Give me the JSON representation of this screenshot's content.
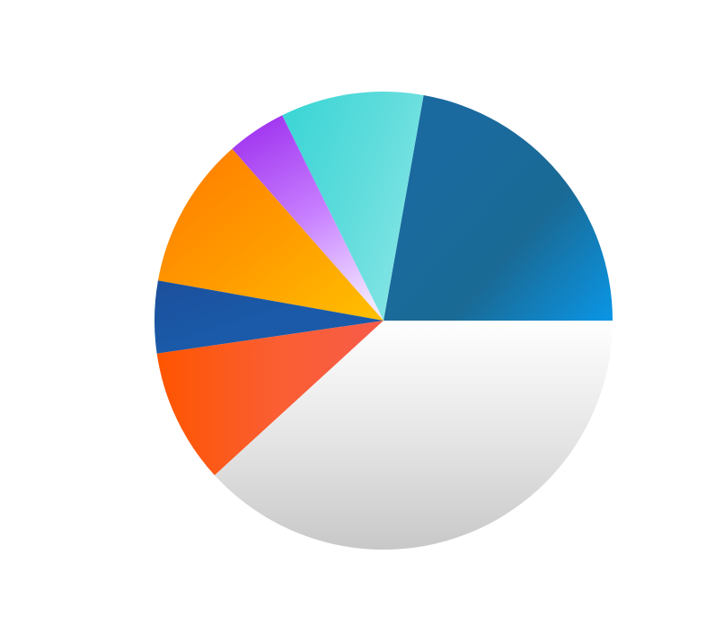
{
  "chart_data": {
    "type": "pie",
    "title": "",
    "start_angle_deg": 0,
    "direction": "counterclockwise",
    "legend": "none",
    "slices": [
      {
        "value": 22.2,
        "gradient": [
          "#1a6aa0",
          "#1a6a95",
          "#0a96e6"
        ]
      },
      {
        "value": 10.1,
        "gradient": [
          "#3ed6d6",
          "#60dcdc",
          "#8ae6e6"
        ]
      },
      {
        "value": 4.2,
        "gradient": [
          "#a238f0",
          "#c880ff",
          "#f2e6ff"
        ]
      },
      {
        "value": 10.7,
        "gradient": [
          "#ff7a00",
          "#ff9a00",
          "#ffc000"
        ]
      },
      {
        "value": 5.1,
        "gradient": [
          "#1c4f9c",
          "#1a5aa8",
          "#1a5aa8"
        ]
      },
      {
        "value": 9.5,
        "gradient": [
          "#ff5500",
          "#fa5e30",
          "#f75c4a"
        ]
      },
      {
        "value": 38.2,
        "gradient": [
          "#ffffff",
          "#e6e6e6",
          "#c8c8c8"
        ]
      }
    ]
  }
}
